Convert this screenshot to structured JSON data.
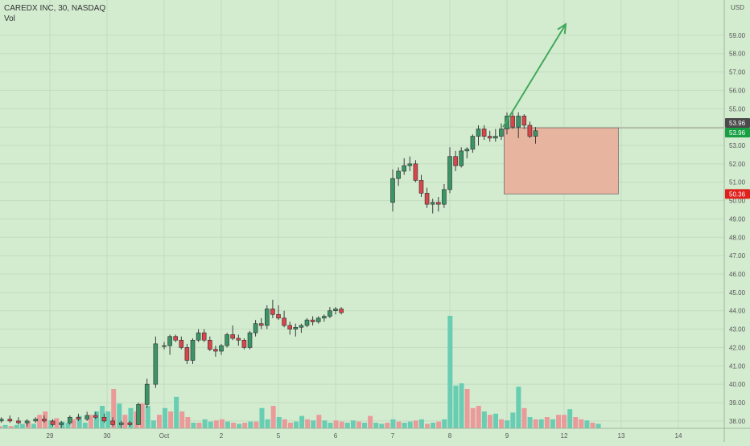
{
  "header": {
    "title": "CAREDX INC, 30, NASDAQ",
    "volume_label": "Vol",
    "currency": "USD"
  },
  "colors": {
    "background": "#d3ecd0",
    "grid": "#c3dcc0",
    "up": "#3a9466",
    "down": "#d8454a",
    "up_volume": "#68cdb2",
    "down_volume": "#eb9a9a",
    "arrow": "#43a85c",
    "zone_fill": "#e7b59f",
    "zone_edge": "#7a6a6a"
  },
  "chart_data": {
    "type": "candlestick",
    "timeframe": "30",
    "x_tick_labels": [
      "29",
      "30",
      "Oct",
      "2",
      "5",
      "6",
      "7",
      "8",
      "9",
      "12",
      "13",
      "14"
    ],
    "y_ticks": [
      38,
      39,
      40,
      41,
      42,
      43,
      44,
      45,
      46,
      47,
      48,
      49,
      50,
      51,
      52,
      53,
      54,
      55,
      56,
      57,
      58,
      59
    ],
    "ylim": [
      37.6,
      60.7
    ],
    "series_ohlc": [
      [
        42.1,
        42.3,
        41.9,
        42.1
      ],
      [
        42.1,
        42.7,
        41.6,
        42.6
      ],
      [
        42.6,
        42.7,
        42.3,
        42.4
      ],
      [
        42.4,
        42.6,
        41.9,
        42.0
      ],
      [
        42.0,
        42.2,
        41.1,
        41.3
      ],
      [
        41.3,
        42.5,
        41.1,
        42.4
      ],
      [
        42.4,
        43.0,
        42.3,
        42.8
      ],
      [
        42.8,
        43.0,
        42.3,
        42.4
      ],
      [
        42.4,
        42.6,
        41.8,
        41.9
      ],
      [
        41.9,
        42.1,
        41.5,
        41.8
      ],
      [
        41.8,
        42.2,
        41.6,
        42.1
      ],
      [
        42.1,
        42.8,
        42.0,
        42.7
      ],
      [
        42.7,
        43.2,
        42.4,
        42.5
      ],
      [
        42.5,
        42.7,
        42.1,
        42.4
      ],
      [
        42.4,
        42.5,
        41.9,
        42.0
      ],
      [
        42.0,
        42.9,
        41.9,
        42.8
      ],
      [
        42.8,
        43.5,
        42.6,
        43.3
      ],
      [
        43.3,
        43.6,
        43.0,
        43.2
      ],
      [
        43.2,
        44.3,
        43.0,
        44.1
      ],
      [
        44.1,
        44.6,
        43.6,
        43.8
      ],
      [
        43.8,
        44.3,
        43.5,
        43.6
      ],
      [
        43.6,
        44.0,
        43.1,
        43.2
      ],
      [
        43.2,
        43.4,
        42.7,
        43.0
      ],
      [
        43.0,
        43.3,
        42.6,
        43.1
      ],
      [
        43.1,
        43.3,
        42.8,
        43.2
      ],
      [
        43.2,
        43.6,
        43.1,
        43.5
      ],
      [
        43.5,
        43.7,
        43.2,
        43.4
      ],
      [
        43.4,
        43.7,
        43.3,
        43.6
      ],
      [
        43.6,
        43.8,
        43.4,
        43.7
      ],
      [
        43.7,
        44.2,
        43.6,
        44.0
      ],
      [
        44.0,
        44.2,
        43.8,
        44.1
      ],
      [
        44.1,
        44.2,
        43.8,
        43.9
      ],
      [
        49.9,
        51.7,
        49.4,
        51.2
      ],
      [
        51.2,
        51.8,
        50.8,
        51.6
      ],
      [
        51.6,
        52.3,
        51.4,
        51.9
      ],
      [
        51.9,
        52.4,
        51.6,
        52.0
      ],
      [
        52.0,
        52.2,
        51.0,
        51.1
      ],
      [
        51.1,
        51.4,
        50.2,
        50.4
      ],
      [
        50.4,
        50.7,
        49.6,
        49.8
      ],
      [
        49.8,
        50.1,
        49.3,
        49.9
      ],
      [
        49.9,
        50.2,
        49.4,
        49.8
      ],
      [
        49.8,
        50.9,
        49.6,
        50.6
      ],
      [
        50.6,
        52.9,
        50.4,
        52.4
      ],
      [
        52.4,
        52.7,
        51.6,
        51.9
      ],
      [
        51.9,
        52.9,
        51.8,
        52.7
      ],
      [
        52.7,
        52.9,
        52.3,
        52.8
      ],
      [
        52.8,
        53.6,
        52.6,
        53.5
      ],
      [
        53.5,
        54.1,
        53.0,
        53.9
      ],
      [
        53.9,
        54.1,
        53.3,
        53.5
      ],
      [
        53.5,
        53.8,
        53.2,
        53.4
      ],
      [
        53.4,
        53.9,
        53.2,
        53.5
      ],
      [
        53.5,
        54.2,
        53.3,
        53.9
      ],
      [
        53.9,
        54.8,
        53.6,
        54.6
      ],
      [
        54.6,
        54.8,
        53.9,
        54.0
      ],
      [
        54.0,
        54.8,
        53.4,
        54.6
      ],
      [
        54.6,
        54.7,
        53.9,
        54.1
      ],
      [
        54.1,
        54.3,
        53.4,
        53.5
      ],
      [
        53.5,
        54.0,
        53.1,
        53.8
      ]
    ],
    "series_x_days": [
      2.0,
      2.1,
      2.2,
      2.3,
      2.4,
      2.5,
      2.6,
      2.7,
      2.8,
      2.9,
      3.0,
      3.1,
      3.2,
      3.3,
      3.4,
      3.5,
      3.6,
      3.7,
      3.8,
      3.9,
      4.0,
      4.1,
      4.2,
      4.3,
      4.4,
      4.5,
      4.6,
      4.7,
      4.8,
      4.9,
      5.0,
      5.1,
      6.0,
      6.1,
      6.2,
      6.3,
      6.4,
      6.5,
      6.6,
      6.7,
      6.8,
      6.9,
      7.0,
      7.1,
      7.2,
      7.3,
      7.4,
      7.5,
      7.6,
      7.7,
      7.8,
      7.9,
      8.0,
      8.1,
      8.2,
      8.3,
      8.4,
      8.5
    ],
    "early_bars": {
      "x_days": [
        -0.85,
        -0.7,
        -0.55,
        -0.4,
        -0.25,
        -0.1,
        0.05,
        0.2,
        0.35,
        0.5,
        0.65,
        0.8,
        0.95,
        1.1,
        1.25,
        1.4,
        1.55,
        1.7,
        1.85
      ],
      "ohlc": [
        [
          38.0,
          38.2,
          37.9,
          38.1
        ],
        [
          38.1,
          38.3,
          37.9,
          38.0
        ],
        [
          38.0,
          38.2,
          37.8,
          37.9
        ],
        [
          37.9,
          38.1,
          37.7,
          38.0
        ],
        [
          38.0,
          38.2,
          37.9,
          38.1
        ],
        [
          38.1,
          38.3,
          37.9,
          38.0
        ],
        [
          38.0,
          38.1,
          37.7,
          37.8
        ],
        [
          37.8,
          38.0,
          37.6,
          37.9
        ],
        [
          37.9,
          38.3,
          37.8,
          38.2
        ],
        [
          38.2,
          38.4,
          38.0,
          38.1
        ],
        [
          38.1,
          38.5,
          38.0,
          38.3
        ],
        [
          38.3,
          38.5,
          38.1,
          38.2
        ],
        [
          38.2,
          38.4,
          37.9,
          38.0
        ],
        [
          38.0,
          38.2,
          37.7,
          37.8
        ],
        [
          37.8,
          38.0,
          37.6,
          37.9
        ],
        [
          37.9,
          38.0,
          37.7,
          37.8
        ],
        [
          37.8,
          39.0,
          37.8,
          38.9
        ],
        [
          38.9,
          40.3,
          38.7,
          40.0
        ],
        [
          40.0,
          42.6,
          39.8,
          42.2
        ]
      ]
    },
    "volume": [
      0.02,
      0.02,
      0.03,
      0.02,
      0.03,
      0.04,
      0.06,
      0.04,
      0.12,
      0.15,
      0.07,
      0.09,
      0.06,
      0.05,
      0.08,
      0.11,
      0.05,
      0.12,
      0.15,
      0.2,
      0.15,
      0.35,
      0.22,
      0.12,
      0.18,
      0.15,
      0.22,
      0.2,
      0.07,
      0.12,
      0.18,
      0.15,
      0.28,
      0.15,
      0.1,
      0.05,
      0.05,
      0.08,
      0.06,
      0.07,
      0.08,
      0.06,
      0.05,
      0.04,
      0.05,
      0.06,
      0.06,
      0.18,
      0.08,
      0.2,
      0.1,
      0.08,
      0.05,
      0.06,
      0.11,
      0.08,
      0.07,
      0.12,
      0.07,
      0.05,
      0.07,
      0.06,
      0.05,
      0.07,
      0.06,
      0.05,
      0.11,
      0.05,
      0.04,
      0.05,
      0.08,
      0.06,
      0.05,
      0.06,
      0.07,
      0.08,
      0.04,
      0.05,
      0.06,
      0.08,
      1.0,
      0.38,
      0.4,
      0.35,
      0.18,
      0.2,
      0.15,
      0.12,
      0.13,
      0.08,
      0.07,
      0.14,
      0.37,
      0.18,
      0.1,
      0.08,
      0.08,
      0.1,
      0.08,
      0.12,
      0.12,
      0.17,
      0.1,
      0.08,
      0.07,
      0.05,
      0.04
    ],
    "volume_up_pattern": [
      1,
      0,
      1,
      0,
      1,
      1,
      0,
      1,
      0,
      0,
      1,
      0,
      1,
      1,
      0,
      1,
      1,
      0,
      1,
      1,
      1,
      0,
      1,
      0,
      1,
      0,
      0,
      1,
      1,
      0,
      1,
      0,
      1,
      0,
      0,
      1,
      0,
      1,
      1,
      0,
      0,
      1,
      0,
      1,
      0,
      1,
      0,
      1,
      1,
      0,
      1,
      0,
      0,
      1,
      1,
      0,
      1,
      0,
      1,
      1,
      0,
      0,
      1,
      1,
      0,
      1,
      0,
      1,
      1,
      0,
      1,
      0,
      1,
      1,
      0,
      1,
      0,
      1,
      0,
      1,
      1,
      1,
      1,
      0,
      0,
      0,
      1,
      0,
      1,
      0,
      1,
      1,
      1,
      0,
      1,
      0,
      1,
      0,
      1,
      0,
      0,
      1,
      0,
      0,
      1,
      0,
      1
    ],
    "annotations": {
      "arrow": {
        "from": [
          8.0,
          54.0
        ],
        "to": [
          9.0,
          59.6
        ]
      },
      "zone": {
        "x0": 7.95,
        "x1": 9.95,
        "y_top": 53.96,
        "y_bottom": 50.36
      }
    }
  },
  "price_labels": [
    {
      "text": "53.96",
      "value": 53.96,
      "bg": "#4a4a4a",
      "fg": "#ffffff",
      "offset": -6
    },
    {
      "text": "53.96",
      "value": 53.96,
      "bg": "#17a043",
      "fg": "#ffffff",
      "offset": 6
    },
    {
      "text": "50.36",
      "value": 50.36,
      "bg": "#e0201c",
      "fg": "#ffffff",
      "offset": 0
    }
  ]
}
